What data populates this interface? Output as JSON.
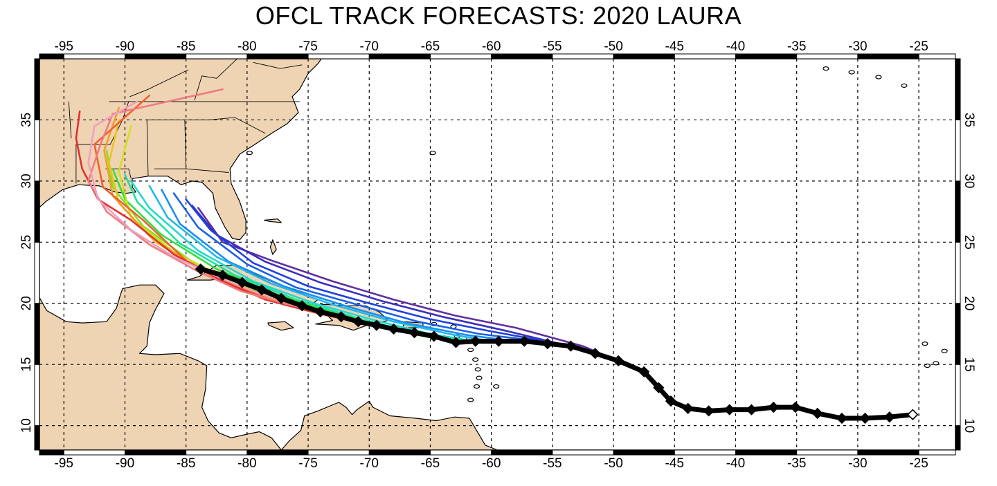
{
  "title": "OFCL TRACK FORECASTS: 2020 LAURA",
  "colors": {
    "land": "#efd4b4",
    "water": "#ffffff",
    "best_track": "#000000",
    "grid": "#000000"
  },
  "chart_data": {
    "type": "map",
    "title": "OFCL TRACK FORECASTS: 2020 LAURA",
    "x_ticks": [
      "-95",
      "-90",
      "-85",
      "-80",
      "-75",
      "-70",
      "-65",
      "-60",
      "-55",
      "-50",
      "-45",
      "-40",
      "-35",
      "-30",
      "-25"
    ],
    "y_ticks": [
      "10",
      "15",
      "20",
      "25",
      "30",
      "35"
    ],
    "lon_range": [
      -97,
      -22
    ],
    "lat_range": [
      8,
      40
    ],
    "grid": true,
    "best_track": [
      [
        -25.5,
        10.9
      ],
      [
        -27.4,
        10.7
      ],
      [
        -29.4,
        10.6
      ],
      [
        -31.3,
        10.6
      ],
      [
        -33.3,
        11.0
      ],
      [
        -35.1,
        11.5
      ],
      [
        -36.9,
        11.5
      ],
      [
        -38.7,
        11.3
      ],
      [
        -40.5,
        11.3
      ],
      [
        -42.2,
        11.2
      ],
      [
        -43.9,
        11.4
      ],
      [
        -45.3,
        12.0
      ],
      [
        -46.3,
        13.1
      ],
      [
        -47.5,
        14.4
      ],
      [
        -49.6,
        15.3
      ],
      [
        -51.5,
        15.9
      ],
      [
        -53.5,
        16.5
      ],
      [
        -55.4,
        16.7
      ],
      [
        -57.3,
        16.9
      ],
      [
        -59.4,
        16.9
      ],
      [
        -61.3,
        16.9
      ],
      [
        -62.9,
        16.8
      ],
      [
        -64.7,
        17.3
      ],
      [
        -66.3,
        17.6
      ],
      [
        -68.0,
        17.9
      ],
      [
        -69.4,
        18.2
      ],
      [
        -70.9,
        18.5
      ],
      [
        -72.3,
        18.9
      ],
      [
        -74.0,
        19.3
      ],
      [
        -75.5,
        19.8
      ],
      [
        -77.2,
        20.4
      ],
      [
        -78.8,
        21.1
      ],
      [
        -80.4,
        21.7
      ],
      [
        -82.0,
        22.3
      ],
      [
        -83.8,
        22.8
      ]
    ],
    "forecasts": [
      {
        "color": "#5f2f9f",
        "points": [
          [
            -47.5,
            14.4
          ],
          [
            -52.5,
            16.5
          ],
          [
            -58,
            18.0
          ],
          [
            -63,
            19.0
          ],
          [
            -68,
            20.3
          ],
          [
            -73,
            21.8
          ],
          [
            -78,
            23.5
          ],
          [
            -82,
            25.0
          ],
          [
            -84,
            27.8
          ]
        ]
      },
      {
        "color": "#3a2fbf",
        "points": [
          [
            -49.6,
            15.3
          ],
          [
            -54,
            16.6
          ],
          [
            -59,
            17.8
          ],
          [
            -64,
            18.9
          ],
          [
            -69,
            20.2
          ],
          [
            -74,
            21.7
          ],
          [
            -78.5,
            23.4
          ],
          [
            -82.5,
            25.6
          ],
          [
            -84.5,
            28.0
          ]
        ]
      },
      {
        "color": "#1f3fdf",
        "points": [
          [
            -51.5,
            15.9
          ],
          [
            -55,
            16.8
          ],
          [
            -60,
            17.7
          ],
          [
            -65,
            18.7
          ],
          [
            -70,
            20.0
          ],
          [
            -75,
            21.4
          ],
          [
            -79.5,
            23.3
          ],
          [
            -83,
            26.0
          ],
          [
            -85,
            28.5
          ]
        ]
      },
      {
        "color": "#1a60e8",
        "points": [
          [
            -53.5,
            16.5
          ],
          [
            -56,
            16.9
          ],
          [
            -61,
            17.5
          ],
          [
            -66,
            18.5
          ],
          [
            -71,
            19.9
          ],
          [
            -76,
            21.3
          ],
          [
            -80,
            23.2
          ],
          [
            -84,
            26.2
          ],
          [
            -86,
            29.0
          ]
        ]
      },
      {
        "color": "#1a8fef",
        "points": [
          [
            -55.4,
            16.7
          ],
          [
            -58,
            16.9
          ],
          [
            -62,
            17.4
          ],
          [
            -67,
            18.4
          ],
          [
            -72,
            19.8
          ],
          [
            -77,
            21.4
          ],
          [
            -81.5,
            23.4
          ],
          [
            -85.5,
            26.5
          ],
          [
            -87,
            29.3
          ]
        ]
      },
      {
        "color": "#20b7e8",
        "points": [
          [
            -57.3,
            16.9
          ],
          [
            -60,
            16.9
          ],
          [
            -63,
            17.4
          ],
          [
            -68,
            18.5
          ],
          [
            -73,
            19.9
          ],
          [
            -78,
            21.6
          ],
          [
            -82.5,
            23.8
          ],
          [
            -86.5,
            27.0
          ],
          [
            -88,
            29.6
          ]
        ]
      },
      {
        "color": "#20d8d0",
        "points": [
          [
            -59.4,
            16.9
          ],
          [
            -62,
            17.0
          ],
          [
            -65,
            17.5
          ],
          [
            -69.5,
            18.6
          ],
          [
            -74.5,
            20.0
          ],
          [
            -79.5,
            21.8
          ],
          [
            -84,
            24.3
          ],
          [
            -88,
            27.8
          ],
          [
            -89.5,
            30.0
          ]
        ]
      },
      {
        "color": "#20e0a0",
        "points": [
          [
            -61.3,
            16.9
          ],
          [
            -64,
            17.2
          ],
          [
            -67,
            17.8
          ],
          [
            -71,
            18.8
          ],
          [
            -76,
            20.3
          ],
          [
            -81,
            22.3
          ],
          [
            -85.5,
            24.9
          ],
          [
            -89,
            28.3
          ],
          [
            -90,
            30.5
          ]
        ]
      },
      {
        "color": "#30e040",
        "points": [
          [
            -62.9,
            16.8
          ],
          [
            -65.5,
            17.3
          ],
          [
            -68.5,
            18.0
          ],
          [
            -72.5,
            19.1
          ],
          [
            -77.5,
            20.7
          ],
          [
            -82.5,
            22.8
          ],
          [
            -87,
            25.6
          ],
          [
            -90,
            28.5
          ],
          [
            -91,
            31.0
          ]
        ]
      },
      {
        "color": "#7fe020",
        "points": [
          [
            -64.7,
            17.3
          ],
          [
            -67.5,
            17.7
          ],
          [
            -70.5,
            18.4
          ],
          [
            -74.5,
            19.5
          ],
          [
            -79.5,
            21.1
          ],
          [
            -84.5,
            23.4
          ],
          [
            -88.5,
            26.3
          ],
          [
            -91,
            29.5
          ],
          [
            -91.5,
            32.5
          ]
        ]
      },
      {
        "color": "#cfe020",
        "points": [
          [
            -66.3,
            17.6
          ],
          [
            -69,
            18.0
          ],
          [
            -72,
            18.8
          ],
          [
            -76,
            20.0
          ],
          [
            -81,
            21.7
          ],
          [
            -86,
            24.2
          ],
          [
            -89.5,
            27.0
          ],
          [
            -90.5,
            30.8
          ],
          [
            -89.5,
            34.5
          ]
        ]
      },
      {
        "color": "#f0c020",
        "points": [
          [
            -68.0,
            17.9
          ],
          [
            -70.5,
            18.4
          ],
          [
            -74,
            19.2
          ],
          [
            -78,
            20.4
          ],
          [
            -83,
            22.3
          ],
          [
            -87.5,
            25.0
          ],
          [
            -90.5,
            28.2
          ],
          [
            -91.3,
            31.5
          ],
          [
            -90.5,
            35.0
          ]
        ]
      },
      {
        "color": "#f59b2a",
        "points": [
          [
            -69.4,
            18.2
          ],
          [
            -72,
            18.7
          ],
          [
            -75.5,
            19.5
          ],
          [
            -79.5,
            20.8
          ],
          [
            -84,
            22.8
          ],
          [
            -88,
            25.5
          ],
          [
            -91,
            28.8
          ],
          [
            -91.7,
            32.5
          ],
          [
            -90.5,
            36.0
          ]
        ]
      },
      {
        "color": "#f06030",
        "points": [
          [
            -70.9,
            18.5
          ],
          [
            -73.5,
            19.0
          ],
          [
            -77,
            19.9
          ],
          [
            -81,
            21.4
          ],
          [
            -85,
            23.5
          ],
          [
            -88.5,
            26.8
          ],
          [
            -91.8,
            29.5
          ],
          [
            -92.5,
            33.0
          ],
          [
            -88,
            37.0
          ]
        ]
      },
      {
        "color": "#e03030",
        "points": [
          [
            -72.3,
            18.9
          ],
          [
            -75,
            19.4
          ],
          [
            -78.5,
            20.3
          ],
          [
            -82,
            21.8
          ],
          [
            -86,
            24.0
          ],
          [
            -89.5,
            26.8
          ],
          [
            -92.2,
            28.5
          ],
          [
            -93.5,
            31.0
          ],
          [
            -94,
            33.5
          ],
          [
            -93.7,
            35.7
          ]
        ]
      },
      {
        "color": "#f07a80",
        "points": [
          [
            -74.0,
            19.3
          ],
          [
            -77,
            20.0
          ],
          [
            -80.5,
            21.0
          ],
          [
            -84,
            22.6
          ],
          [
            -88,
            24.8
          ],
          [
            -91.5,
            27.5
          ],
          [
            -93.0,
            30.0
          ],
          [
            -92,
            33.0
          ],
          [
            -91,
            35.5
          ],
          [
            -82,
            37.5
          ]
        ]
      },
      {
        "color": "#f0a0c0",
        "points": [
          [
            -75.5,
            19.8
          ],
          [
            -79,
            20.8
          ],
          [
            -82,
            22.0
          ],
          [
            -86,
            23.8
          ],
          [
            -89.5,
            26.0
          ],
          [
            -92.2,
            28.5
          ],
          [
            -93,
            31.5
          ],
          [
            -92.5,
            34.5
          ],
          [
            -89,
            36.5
          ]
        ]
      }
    ]
  }
}
